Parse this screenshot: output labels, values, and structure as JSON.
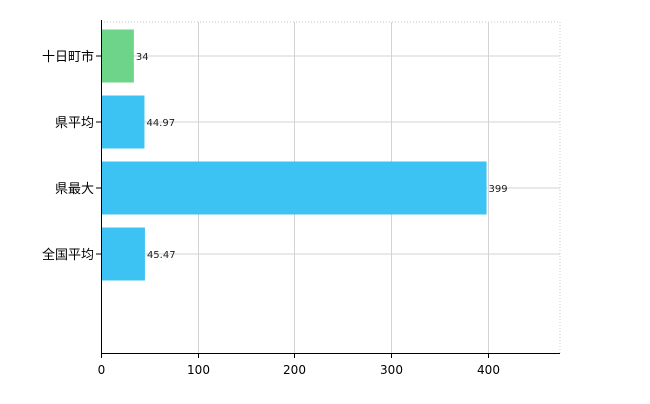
{
  "chart_data": {
    "type": "bar",
    "orientation": "horizontal",
    "categories": [
      "十日町市",
      "県平均",
      "県最大",
      "全国平均"
    ],
    "values": [
      34,
      44.97,
      399,
      45.47
    ],
    "data_labels": [
      "34",
      "44.97",
      "399",
      "45.47"
    ],
    "bar_colors": [
      "#6dd48a",
      "#3cc3f3",
      "#3cc3f3",
      "#3cc3f3"
    ],
    "xlim": [
      0,
      475
    ],
    "x_ticks": [
      0,
      100,
      200,
      300,
      400
    ],
    "x_tick_labels": [
      "0",
      "100",
      "200",
      "300",
      "400"
    ],
    "grid": true,
    "title": "",
    "xlabel": "",
    "ylabel": ""
  }
}
